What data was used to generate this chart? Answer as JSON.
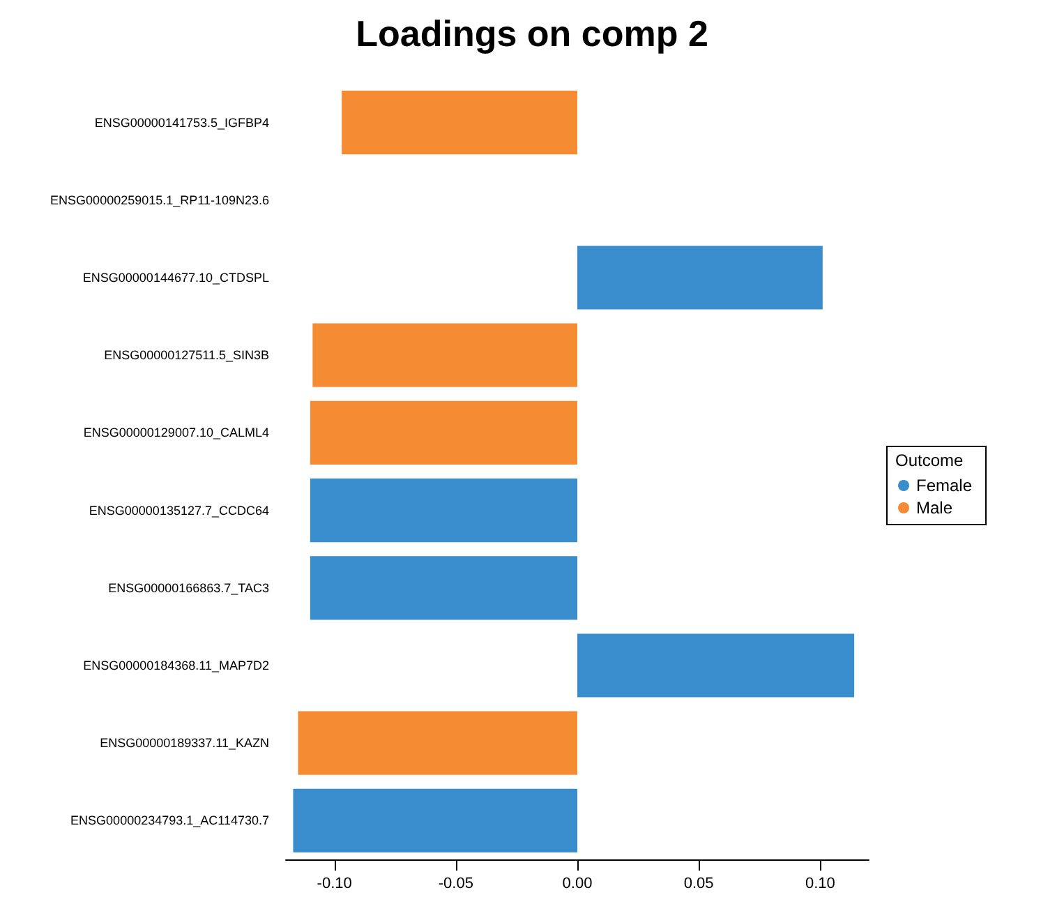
{
  "chart_data": {
    "type": "bar",
    "orientation": "horizontal",
    "title": "Loadings on comp 2",
    "legend_title": "Outcome",
    "legend": "right",
    "categories": [
      "ENSG00000141753.5_IGFBP4",
      "ENSG00000259015.1_RP11-109N23.6",
      "ENSG00000144677.10_CTDSPL",
      "ENSG00000127511.5_SIN3B",
      "ENSG00000129007.10_CALML4",
      "ENSG00000135127.7_CCDC64",
      "ENSG00000166863.7_TAC3",
      "ENSG00000184368.11_MAP7D2",
      "ENSG00000189337.11_KAZN",
      "ENSG00000234793.1_AC114730.7"
    ],
    "series": [
      {
        "name": "Female",
        "color": "#3a8dcc",
        "values": [
          null,
          null,
          0.101,
          null,
          null,
          -0.11,
          -0.11,
          0.114,
          null,
          -0.117
        ]
      },
      {
        "name": "Male",
        "color": "#f58b33",
        "values": [
          -0.097,
          null,
          null,
          -0.109,
          -0.11,
          null,
          null,
          null,
          -0.115,
          null
        ]
      }
    ],
    "xlim": [
      -0.12,
      0.12
    ],
    "xticks": [
      {
        "value": -0.1,
        "label": "-0.10"
      },
      -0.05,
      {
        "value": 0,
        "label": "0.00"
      },
      0.05,
      {
        "value": 0.1,
        "label": "0.10"
      }
    ],
    "grid": false
  }
}
